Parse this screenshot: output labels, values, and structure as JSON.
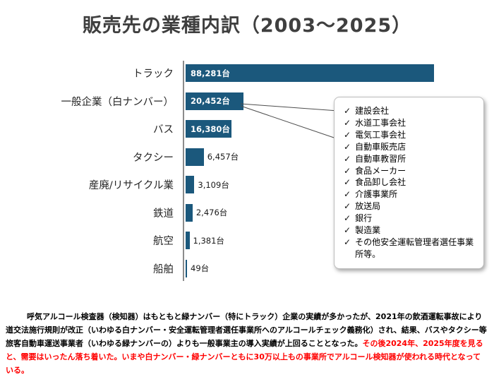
{
  "title": "販売先の業種内訳（2003～2025）",
  "chart_data": {
    "type": "bar",
    "orientation": "horizontal",
    "title": "販売先の業種内訳（2003～2025）",
    "categories": [
      "トラック",
      "一般企業（白ナンバー）",
      "バス",
      "タクシー",
      "産廃/リサイクル業",
      "鉄道",
      "航空",
      "船舶"
    ],
    "values": [
      88281,
      20452,
      16380,
      6457,
      3109,
      2476,
      1381,
      49
    ],
    "value_labels": [
      "88,281台",
      "20,452台",
      "16,380台",
      "6,457台",
      "3,109台",
      "2,476台",
      "1,381台",
      "49台"
    ],
    "xlim": [
      0,
      95000
    ],
    "grid": false,
    "legend": false,
    "bar_color": "#1b587c"
  },
  "callout": {
    "check_glyph": "✓",
    "items": [
      "建設会社",
      "水道工事会社",
      "電気工事会社",
      "自動車販売店",
      "自動車教習所",
      "食品メーカー",
      "食品卸し会社",
      "介護事業所",
      "放送局",
      "銀行",
      "製造業",
      "その他安全運転管理者選任事業所等。"
    ]
  },
  "footnote": {
    "text_black": "呼気アルコール検査器（検知器）はもともと緑ナンバー（特にトラック）企業の実績が多かったが、2021年の飲酒運転事故により道交法施行規則が改正（いわゆる白ナンバー・安全運転管理者選任事業所へのアルコールチェック義務化）され、結果、バスやタクシー等旅客自動車運送事業者（いわゆる緑ナンバーの）よりも一般事業主の導入実績が上回ることとなった。",
    "text_red": "その後2024年、2025年度を見ると、需要はいったん落ち着いた。いまや白ナンバー・緑ナンバーともに30万以上もの事業所でアルコール検知器が使われる時代となっている。"
  },
  "colors": {
    "bar": "#1b587c",
    "title_text": "#3f3f3f",
    "highlight_text": "#ff0000"
  }
}
